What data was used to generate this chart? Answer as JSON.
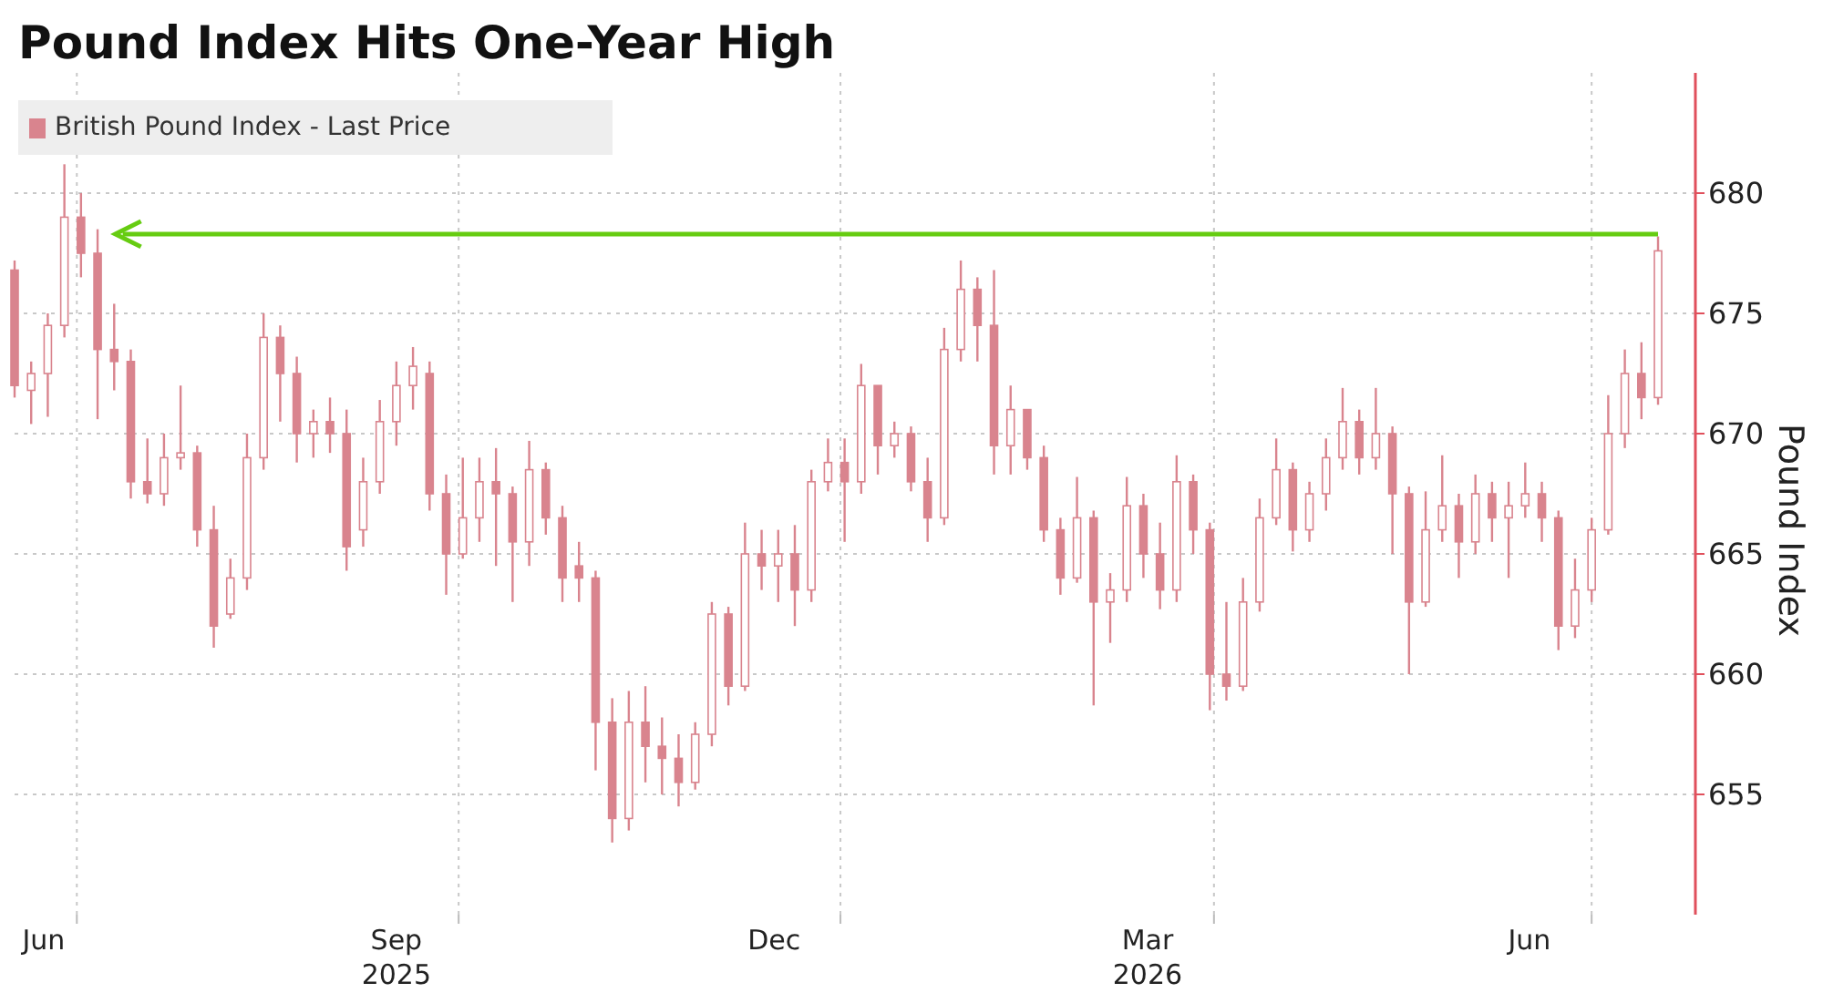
{
  "chart_data": {
    "type": "candlestick",
    "title": "Pound Index Hits One-Year High",
    "ylabel": "Pound Index",
    "xlim": [
      "2025-06-16",
      "2026-07-26"
    ],
    "xticks": [
      {
        "value": "2025-06-23",
        "label": "Jun"
      },
      {
        "value": "2025-07-01",
        "label": null
      },
      {
        "value": "2025-09-16",
        "label": "Sep\n2025"
      },
      {
        "value": "2025-10-01",
        "label": null
      },
      {
        "value": "2025-12-16",
        "label": "Dec"
      },
      {
        "value": "2026-01-01",
        "label": null
      },
      {
        "value": "2026-03-16",
        "label": "Mar\n2026"
      },
      {
        "value": "2026-04-01",
        "label": null
      },
      {
        "value": "2026-06-16",
        "label": "Jun"
      },
      {
        "value": "2026-07-01",
        "label": null
      }
    ],
    "ylim": [
      650,
      685
    ],
    "yticks": [
      655,
      660,
      665,
      670,
      675,
      680
    ],
    "grid": true,
    "legend": "top left",
    "ref_lines": [
      {
        "axis": "y",
        "value": 678.3,
        "color": "#66cc11"
      }
    ],
    "x": [
      "2025-06-16",
      "2025-06-20",
      "2025-06-24",
      "2025-06-28",
      "2025-07-02",
      "2025-07-06",
      "2025-07-10",
      "2025-07-14",
      "2025-07-18",
      "2025-07-22",
      "2025-07-26",
      "2025-07-30",
      "2025-08-03",
      "2025-08-07",
      "2025-08-11",
      "2025-08-15",
      "2025-08-19",
      "2025-08-23",
      "2025-08-27",
      "2025-08-31",
      "2025-09-04",
      "2025-09-08",
      "2025-09-12",
      "2025-09-16",
      "2025-09-20",
      "2025-09-24",
      "2025-09-28",
      "2025-10-02",
      "2025-10-06",
      "2025-10-10",
      "2025-10-14",
      "2025-10-18",
      "2025-10-22",
      "2025-10-26",
      "2025-10-30",
      "2025-11-03",
      "2025-11-07",
      "2025-11-11",
      "2025-11-15",
      "2025-11-19",
      "2025-11-23",
      "2025-11-27",
      "2025-12-01",
      "2025-12-05",
      "2025-12-09",
      "2025-12-13",
      "2025-12-17",
      "2025-12-21",
      "2025-12-25",
      "2025-12-29",
      "2026-01-02",
      "2026-01-06",
      "2026-01-10",
      "2026-01-14",
      "2026-01-18",
      "2026-01-22",
      "2026-01-26",
      "2026-01-30",
      "2026-02-03",
      "2026-02-07",
      "2026-02-11",
      "2026-02-15",
      "2026-02-19",
      "2026-02-23",
      "2026-02-27",
      "2026-03-03",
      "2026-03-07",
      "2026-03-11",
      "2026-03-15",
      "2026-03-19",
      "2026-03-23",
      "2026-03-27",
      "2026-03-31",
      "2026-04-04",
      "2026-04-08",
      "2026-04-12",
      "2026-04-16",
      "2026-04-20",
      "2026-04-24",
      "2026-04-28",
      "2026-05-02",
      "2026-05-06",
      "2026-05-10",
      "2026-05-14",
      "2026-05-18",
      "2026-05-22",
      "2026-05-26",
      "2026-05-30",
      "2026-06-03",
      "2026-06-07",
      "2026-06-11",
      "2026-06-15",
      "2026-06-19",
      "2026-06-23",
      "2026-06-27",
      "2026-07-01",
      "2026-07-05",
      "2026-07-09",
      "2026-07-13",
      "2026-07-17"
    ],
    "series": [
      {
        "name": "British Pound Index - Last Price",
        "color": "#d9848e",
        "ohlc": [
          [
            676.8,
            677.2,
            671.5,
            672
          ],
          [
            671.8,
            673,
            670.4,
            672.5
          ],
          [
            672.5,
            675,
            670.7,
            674.5
          ],
          [
            674.5,
            681.2,
            674,
            679
          ],
          [
            679,
            680,
            676.5,
            677.5
          ],
          [
            677.5,
            678.5,
            670.6,
            673.5
          ],
          [
            673.5,
            675.4,
            671.8,
            673
          ],
          [
            673,
            673.5,
            667.3,
            668
          ],
          [
            668,
            669.8,
            667.1,
            667.5
          ],
          [
            667.5,
            670,
            667,
            669
          ],
          [
            669,
            672,
            668.5,
            669.2
          ],
          [
            669.2,
            669.5,
            665.3,
            666
          ],
          [
            666,
            667,
            661.1,
            662
          ],
          [
            662.5,
            664.8,
            662.3,
            664
          ],
          [
            664,
            670,
            663.5,
            669
          ],
          [
            669,
            675,
            668.5,
            674
          ],
          [
            674,
            674.5,
            670.5,
            672.5
          ],
          [
            672.5,
            673.2,
            668.8,
            670
          ],
          [
            670,
            671,
            669,
            670.5
          ],
          [
            670.5,
            671.5,
            669.2,
            670
          ],
          [
            670,
            671,
            664.3,
            665.3
          ],
          [
            666,
            669,
            665.3,
            668
          ],
          [
            668,
            671.4,
            667.5,
            670.5
          ],
          [
            670.5,
            673,
            669.5,
            672
          ],
          [
            672,
            673.6,
            671,
            672.8
          ],
          [
            672.5,
            673,
            666.8,
            667.5
          ],
          [
            667.5,
            668.3,
            663.3,
            665
          ],
          [
            665,
            669,
            664.8,
            666.5
          ],
          [
            666.5,
            669,
            665.5,
            668
          ],
          [
            668,
            669.4,
            664.5,
            667.5
          ],
          [
            667.5,
            667.8,
            663,
            665.5
          ],
          [
            665.5,
            669.7,
            664.5,
            668.5
          ],
          [
            668.5,
            668.8,
            665.8,
            666.5
          ],
          [
            666.5,
            667,
            663,
            664
          ],
          [
            664.5,
            665.5,
            663,
            664
          ],
          [
            664,
            664.3,
            656,
            658
          ],
          [
            658,
            659,
            653,
            654
          ],
          [
            654,
            659.3,
            653.5,
            658
          ],
          [
            658,
            659.5,
            655.5,
            657
          ],
          [
            657,
            658.2,
            655,
            656.5
          ],
          [
            656.5,
            657.5,
            654.5,
            655.5
          ],
          [
            655.5,
            658,
            655.2,
            657.5
          ],
          [
            657.5,
            663,
            657,
            662.5
          ],
          [
            662.5,
            662.8,
            658.7,
            659.5
          ],
          [
            659.5,
            666.3,
            659.3,
            665
          ],
          [
            665,
            666,
            663.5,
            664.5
          ],
          [
            664.5,
            666,
            663,
            665
          ],
          [
            665,
            666.2,
            662,
            663.5
          ],
          [
            663.5,
            668.5,
            663,
            668
          ],
          [
            668,
            669.8,
            667.6,
            668.8
          ],
          [
            668.8,
            669.8,
            665.5,
            668
          ],
          [
            668,
            672.9,
            667.5,
            672
          ],
          [
            672,
            672,
            668.3,
            669.5
          ],
          [
            669.5,
            670.5,
            669,
            670
          ],
          [
            670,
            670.3,
            667.6,
            668
          ],
          [
            668,
            669,
            665.5,
            666.5
          ],
          [
            666.5,
            674.4,
            666.2,
            673.5
          ],
          [
            673.5,
            677.2,
            673,
            676
          ],
          [
            676,
            676.5,
            673,
            674.5
          ],
          [
            674.5,
            676.8,
            668.3,
            669.5
          ],
          [
            669.5,
            672,
            668.3,
            671
          ],
          [
            671,
            671,
            668.5,
            669
          ],
          [
            669,
            669.5,
            665.5,
            666
          ],
          [
            666,
            666.5,
            663.3,
            664
          ],
          [
            664,
            668.2,
            663.8,
            666.5
          ],
          [
            666.5,
            666.8,
            658.7,
            663
          ],
          [
            663,
            664.2,
            661.3,
            663.5
          ],
          [
            663.5,
            668.2,
            663,
            667
          ],
          [
            667,
            667.5,
            664,
            665
          ],
          [
            665,
            666.3,
            662.7,
            663.5
          ],
          [
            663.5,
            669.1,
            663,
            668
          ],
          [
            668,
            668.3,
            665,
            666
          ],
          [
            666,
            666.3,
            658.5,
            660
          ],
          [
            660,
            663,
            658.9,
            659.5
          ],
          [
            659.5,
            664,
            659.3,
            663
          ],
          [
            663,
            667.3,
            662.6,
            666.5
          ],
          [
            666.5,
            669.8,
            666.2,
            668.5
          ],
          [
            668.5,
            668.8,
            665.1,
            666
          ],
          [
            666,
            668,
            665.5,
            667.5
          ],
          [
            667.5,
            669.8,
            666.8,
            669
          ],
          [
            669,
            671.9,
            668.5,
            670.5
          ],
          [
            670.5,
            671,
            668.3,
            669
          ],
          [
            669,
            671.9,
            668.5,
            670
          ],
          [
            670,
            670.3,
            665,
            667.5
          ],
          [
            667.5,
            667.8,
            660,
            663
          ],
          [
            663,
            667.6,
            662.8,
            666
          ],
          [
            666,
            669.1,
            665.5,
            667
          ],
          [
            667,
            667.5,
            664,
            665.5
          ],
          [
            665.5,
            668.3,
            665,
            667.5
          ],
          [
            667.5,
            668,
            665.5,
            666.5
          ],
          [
            666.5,
            668,
            664,
            667
          ],
          [
            667,
            668.8,
            666.5,
            667.5
          ],
          [
            667.5,
            668,
            665.5,
            666.5
          ],
          [
            666.5,
            666.8,
            661,
            662
          ],
          [
            662,
            664.8,
            661.5,
            663.5
          ],
          [
            663.5,
            666.5,
            663,
            666
          ],
          [
            666,
            671.6,
            665.8,
            670
          ],
          [
            670,
            673.5,
            669.4,
            672.5
          ],
          [
            672.5,
            673.8,
            670.6,
            671.5
          ],
          [
            671.5,
            678.2,
            671.2,
            677.6
          ]
        ]
      }
    ]
  }
}
